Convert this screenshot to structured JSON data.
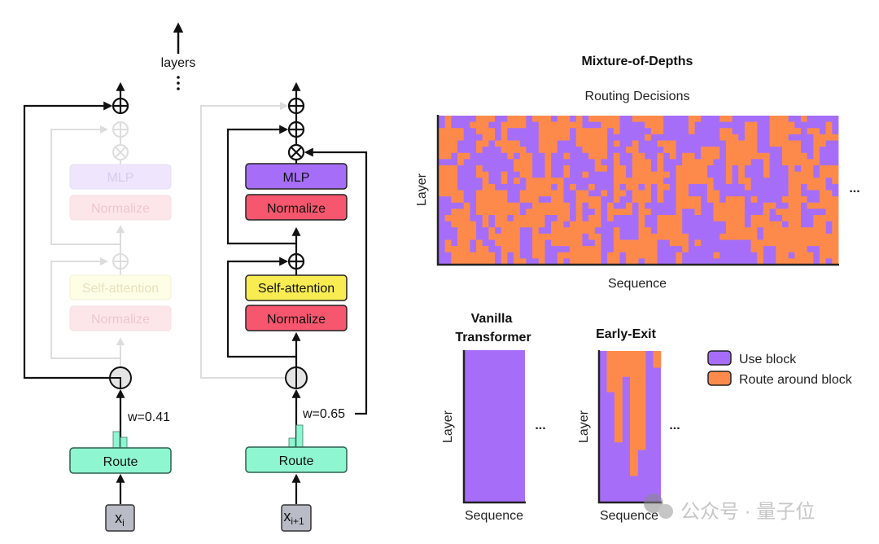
{
  "colors": {
    "use_block": "#a66ef8",
    "route_around": "#fd8a4b",
    "mlp": "#a66ef8",
    "normalize": "#f6566e",
    "self_attention": "#f8ec52",
    "route": "#8ff6d2",
    "input": "#b9bcc6"
  },
  "left_diagram": {
    "layers_label": "layers",
    "col1": {
      "mlp": "MLP",
      "normalize_top": "Normalize",
      "self_attention": "Self-attention",
      "normalize_bottom": "Normalize",
      "weight": "w=0.41",
      "route": "Route",
      "input": "x",
      "input_sub": "i"
    },
    "col2": {
      "mlp": "MLP",
      "normalize_top": "Normalize",
      "self_attention": "Self-attention",
      "normalize_bottom": "Normalize",
      "weight": "w=0.65",
      "route": "Route",
      "input": "x",
      "input_sub": "i+1"
    }
  },
  "mod": {
    "title": "Mixture-of-Depths",
    "subtitle": "Routing Decisions",
    "ylabel": "Layer",
    "xlabel": "Sequence",
    "ellipsis": "..."
  },
  "vanilla": {
    "title_line1": "Vanilla",
    "title_line2": "Transformer",
    "ylabel": "Layer",
    "xlabel": "Sequence",
    "ellipsis": "..."
  },
  "early_exit": {
    "title": "Early-Exit",
    "ylabel": "Layer",
    "xlabel": "Sequence",
    "ellipsis": "...",
    "routed_fraction_per_token": [
      0,
      0.27,
      0.6,
      0.17,
      0.82,
      0.65,
      0,
      0.11
    ]
  },
  "legend": {
    "use_block": "Use block",
    "route_around": "Route around block"
  },
  "watermark": "公众号 · 量子位"
}
